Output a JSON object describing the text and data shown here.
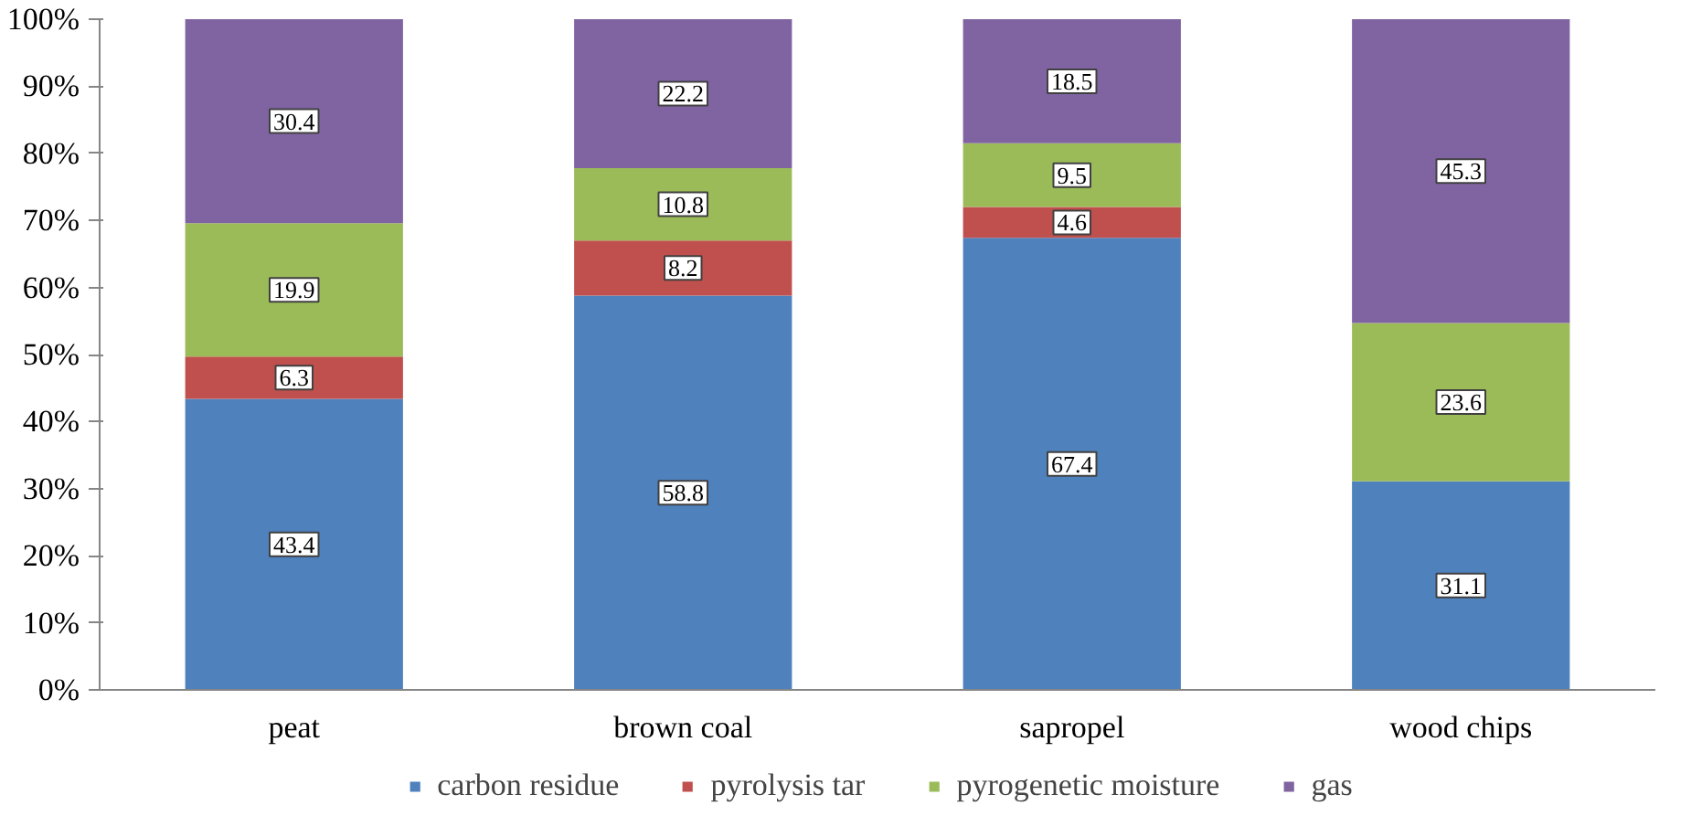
{
  "chart_data": {
    "type": "bar",
    "stacked": true,
    "categories": [
      "peat",
      "brown coal",
      "sapropel",
      "wood chips"
    ],
    "series": [
      {
        "name": "carbon residue",
        "color": "#4f81bd",
        "values": [
          43.4,
          58.8,
          67.4,
          31.1
        ]
      },
      {
        "name": "pyrolysis tar",
        "color": "#c0504d",
        "values": [
          6.3,
          8.2,
          4.6,
          null
        ]
      },
      {
        "name": "pyrogenetic moisture",
        "color": "#9bbb59",
        "values": [
          19.9,
          10.8,
          9.5,
          23.6
        ]
      },
      {
        "name": "gas",
        "color": "#8064a2",
        "values": [
          30.4,
          22.2,
          18.5,
          45.3
        ]
      }
    ],
    "ylim": [
      0,
      100
    ],
    "yticks": [
      {
        "value": 0,
        "label": "0%"
      },
      {
        "value": 10,
        "label": "10%"
      },
      {
        "value": 20,
        "label": "20%"
      },
      {
        "value": 30,
        "label": "30%"
      },
      {
        "value": 40,
        "label": "40%"
      },
      {
        "value": 50,
        "label": "50%"
      },
      {
        "value": 60,
        "label": "60%"
      },
      {
        "value": 70,
        "label": "70%"
      },
      {
        "value": 80,
        "label": "80%"
      },
      {
        "value": 90,
        "label": "90%"
      },
      {
        "value": 100,
        "label": "100%"
      }
    ],
    "data_labels": true,
    "grid": false,
    "legend": "bottom"
  }
}
